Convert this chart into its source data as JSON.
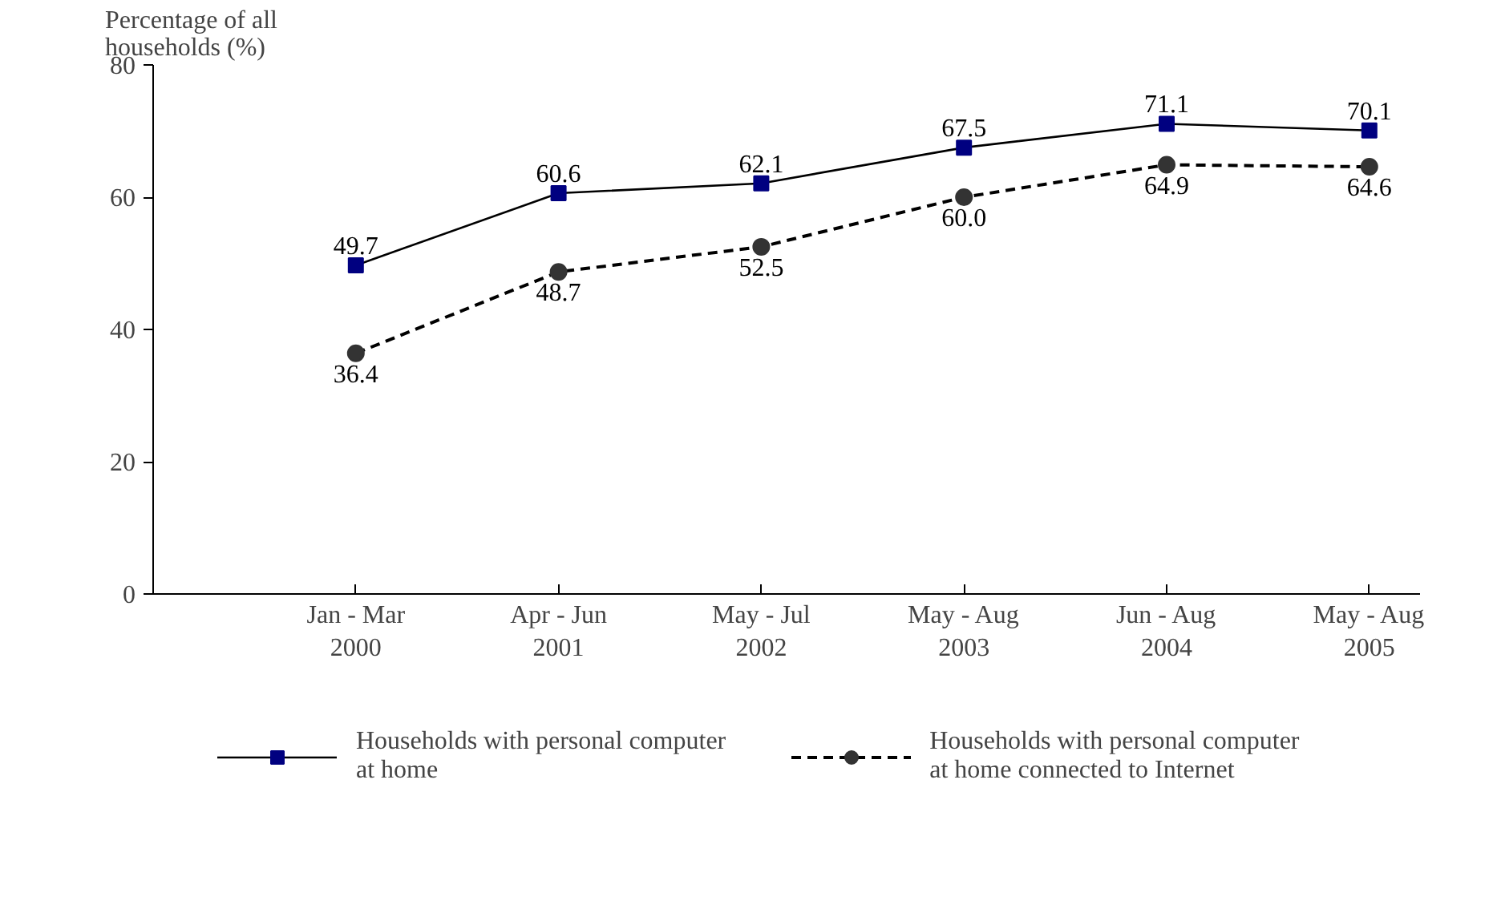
{
  "chart_data": {
    "type": "line",
    "ylabel": "Percentage of all households (%)",
    "categories": [
      "Jan - Mar 2000",
      "Apr - Jun 2001",
      "May - Jul 2002",
      "May - Aug 2003",
      "Jun - Aug 2004",
      "May - Aug 2005"
    ],
    "series": [
      {
        "name": "Households with personal computer at home",
        "color": "#000080",
        "marker": "square",
        "line_style": "solid",
        "values": [
          49.7,
          60.6,
          62.1,
          67.5,
          71.1,
          70.1
        ],
        "value_labels": [
          "49.7",
          "60.6",
          "62.1",
          "67.5",
          "71.1",
          "70.1"
        ]
      },
      {
        "name": "Households with personal computer at home connected to Internet",
        "color": "#333333",
        "marker": "circle",
        "line_style": "dashed",
        "values": [
          36.4,
          48.7,
          52.5,
          60.0,
          64.9,
          64.6
        ],
        "value_labels": [
          "36.4",
          "48.7",
          "52.5",
          "60.0",
          "64.9",
          "64.6"
        ]
      }
    ],
    "ylim": [
      0,
      80
    ],
    "yticks": [
      0,
      20,
      40,
      60,
      80
    ],
    "grid": false,
    "legend": "bottom"
  }
}
